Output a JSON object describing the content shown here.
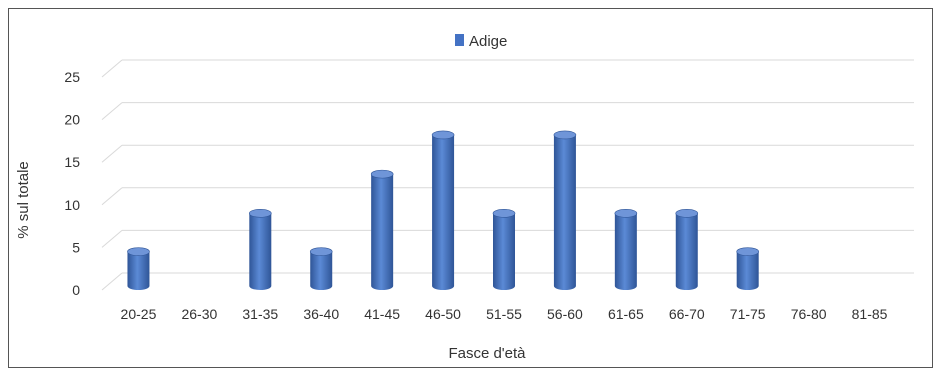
{
  "chart_data": {
    "type": "bar",
    "categories": [
      "20-25",
      "26-30",
      "31-35",
      "36-40",
      "41-45",
      "46-50",
      "51-55",
      "56-60",
      "61-65",
      "66-70",
      "71-75",
      "76-80",
      "81-85"
    ],
    "series": [
      {
        "name": "Adige",
        "values": [
          4.5,
          0,
          9,
          4.5,
          13.6,
          18.2,
          9,
          18.2,
          9,
          9,
          4.5,
          0,
          0
        ]
      }
    ],
    "xlabel": "Fasce d'età",
    "ylabel": "% sul totale",
    "ylim": [
      0,
      25
    ],
    "yticks": [
      0,
      5,
      10,
      15,
      20,
      25
    ],
    "grid": true,
    "legend_position": "top-center",
    "colors": {
      "bar": "#4472C4",
      "bar_dark": "#2F5597",
      "bar_light": "#6F95D8",
      "grid": "#D9D9D9"
    }
  }
}
